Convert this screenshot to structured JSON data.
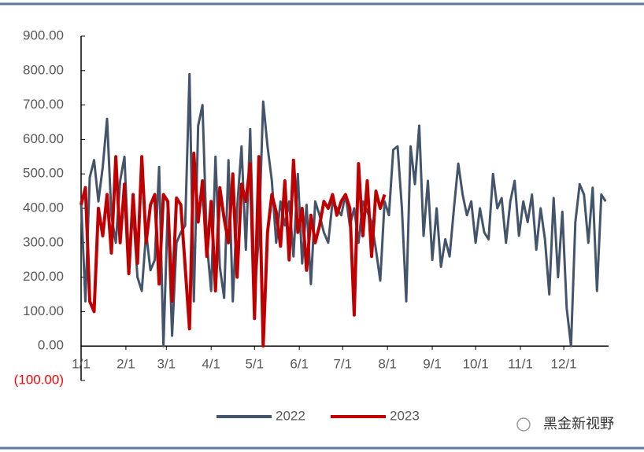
{
  "chart_data": {
    "type": "line",
    "xlim": [
      0,
      365
    ],
    "xticks": [
      {
        "value": 0,
        "label": "1/1"
      },
      {
        "value": 31,
        "label": "2/1"
      },
      {
        "value": 59,
        "label": "3/1"
      },
      {
        "value": 90,
        "label": "4/1"
      },
      {
        "value": 120,
        "label": "5/1"
      },
      {
        "value": 151,
        "label": "6/1"
      },
      {
        "value": 181,
        "label": "7/1"
      },
      {
        "value": 212,
        "label": "8/1"
      },
      {
        "value": 243,
        "label": "9/1"
      },
      {
        "value": 273,
        "label": "10/1"
      },
      {
        "value": 304,
        "label": "11/1"
      },
      {
        "value": 334,
        "label": "12/1"
      }
    ],
    "ylim": [
      -100,
      900
    ],
    "yticks": [
      {
        "value": -100,
        "label": "(100.00)",
        "color": "#ff0000"
      },
      {
        "value": 0,
        "label": "0.00"
      },
      {
        "value": 100,
        "label": "100.00"
      },
      {
        "value": 200,
        "label": "200.00"
      },
      {
        "value": 300,
        "label": "300.00"
      },
      {
        "value": 400,
        "label": "400.00"
      },
      {
        "value": 500,
        "label": "500.00"
      },
      {
        "value": 600,
        "label": "600.00"
      },
      {
        "value": 700,
        "label": "700.00"
      },
      {
        "value": 800,
        "label": "800.00"
      },
      {
        "value": 900,
        "label": "900.00"
      }
    ],
    "series": [
      {
        "name": "2022",
        "color": "#44546a",
        "x": [
          0,
          3,
          6,
          9,
          12,
          15,
          18,
          21,
          24,
          27,
          30,
          33,
          36,
          39,
          42,
          45,
          48,
          51,
          54,
          57,
          60,
          63,
          66,
          69,
          72,
          75,
          78,
          81,
          84,
          87,
          90,
          93,
          96,
          99,
          102,
          105,
          108,
          111,
          114,
          117,
          120,
          123,
          126,
          129,
          132,
          135,
          138,
          141,
          144,
          147,
          150,
          153,
          156,
          159,
          162,
          165,
          168,
          171,
          174,
          177,
          180,
          183,
          186,
          189,
          192,
          195,
          198,
          201,
          204,
          207,
          210,
          213,
          216,
          219,
          222,
          225,
          228,
          231,
          234,
          237,
          240,
          243,
          246,
          249,
          252,
          255,
          258,
          261,
          264,
          267,
          270,
          273,
          276,
          279,
          282,
          285,
          288,
          291,
          294,
          297,
          300,
          303,
          306,
          309,
          312,
          315,
          318,
          321,
          324,
          327,
          330,
          333,
          336,
          339,
          342,
          345,
          348,
          351,
          354,
          357,
          360,
          363
        ],
        "values": [
          420,
          130,
          490,
          540,
          420,
          520,
          660,
          380,
          300,
          480,
          550,
          250,
          390,
          200,
          160,
          330,
          220,
          250,
          520,
          0,
          400,
          30,
          300,
          330,
          350,
          790,
          130,
          640,
          700,
          300,
          160,
          550,
          230,
          140,
          540,
          130,
          400,
          580,
          280,
          630,
          150,
          320,
          710,
          580,
          480,
          300,
          420,
          350,
          420,
          260,
          500,
          240,
          410,
          180,
          420,
          380,
          330,
          300,
          420,
          400,
          380,
          440,
          350,
          400,
          300,
          420,
          390,
          360,
          280,
          190,
          420,
          380,
          570,
          580,
          400,
          130,
          580,
          470,
          640,
          320,
          480,
          250,
          400,
          230,
          310,
          260,
          400,
          530,
          440,
          380,
          420,
          300,
          400,
          330,
          310,
          500,
          400,
          430,
          300,
          420,
          480,
          320,
          420,
          360,
          440,
          280,
          400,
          310,
          150,
          430,
          200,
          390,
          110,
          0,
          360,
          470,
          440,
          300,
          460,
          160,
          440,
          420
        ]
      },
      {
        "name": "2023",
        "color": "#c00000",
        "x": [
          0,
          3,
          6,
          9,
          12,
          15,
          18,
          21,
          24,
          27,
          30,
          33,
          36,
          39,
          42,
          45,
          48,
          51,
          54,
          57,
          60,
          63,
          66,
          69,
          72,
          75,
          78,
          81,
          84,
          87,
          90,
          93,
          96,
          99,
          102,
          105,
          108,
          111,
          114,
          117,
          120,
          123,
          126,
          129,
          132,
          135,
          138,
          141,
          144,
          147,
          150,
          153,
          156,
          159,
          162,
          165,
          168,
          171,
          174,
          177,
          180,
          183,
          186,
          189,
          192,
          195,
          198,
          201,
          204,
          207,
          210
        ],
        "values": [
          410,
          460,
          130,
          100,
          400,
          320,
          440,
          270,
          550,
          300,
          470,
          210,
          440,
          240,
          550,
          300,
          410,
          440,
          180,
          440,
          420,
          130,
          430,
          410,
          230,
          50,
          560,
          360,
          480,
          260,
          420,
          160,
          460,
          370,
          300,
          500,
          200,
          470,
          420,
          530,
          80,
          550,
          0,
          330,
          440,
          390,
          290,
          480,
          250,
          540,
          330,
          400,
          220,
          380,
          300,
          350,
          420,
          400,
          440,
          380,
          420,
          440,
          400,
          90,
          530,
          320,
          480,
          260,
          450,
          400,
          440
        ]
      }
    ],
    "watermark": "黑金新视野"
  }
}
